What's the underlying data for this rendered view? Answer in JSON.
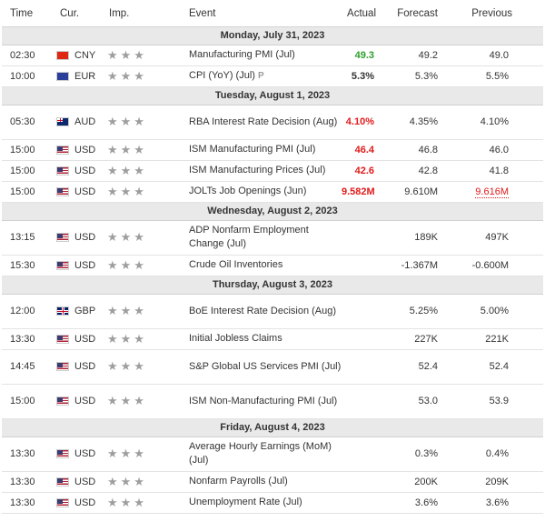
{
  "header": {
    "time": "Time",
    "currency": "Cur.",
    "importance": "Imp.",
    "event": "Event",
    "actual": "Actual",
    "forecast": "Forecast",
    "previous": "Previous"
  },
  "days": [
    {
      "date": "Monday, July 31, 2023",
      "rows": [
        {
          "time": "02:30",
          "flag": "cny",
          "cur": "CNY",
          "event": "Manufacturing PMI (Jul)",
          "actual": "49.3",
          "actual_color": "up",
          "forecast": "49.2",
          "previous": "49.0"
        },
        {
          "time": "10:00",
          "flag": "eur",
          "cur": "EUR",
          "event": "CPI (YoY) (Jul)",
          "prelim": "P",
          "actual": "5.3%",
          "forecast": "5.3%",
          "previous": "5.5%"
        }
      ]
    },
    {
      "date": "Tuesday, August 1, 2023",
      "rows": [
        {
          "time": "05:30",
          "flag": "aud",
          "cur": "AUD",
          "event": "RBA Interest Rate Decision (Aug)",
          "actual": "4.10%",
          "actual_color": "down",
          "forecast": "4.35%",
          "previous": "4.10%",
          "tall": true
        },
        {
          "time": "15:00",
          "flag": "usd",
          "cur": "USD",
          "event": "ISM Manufacturing PMI (Jul)",
          "actual": "46.4",
          "actual_color": "down",
          "forecast": "46.8",
          "previous": "46.0"
        },
        {
          "time": "15:00",
          "flag": "usd",
          "cur": "USD",
          "event": "ISM Manufacturing Prices (Jul)",
          "actual": "42.6",
          "actual_color": "down",
          "forecast": "42.8",
          "previous": "41.8"
        },
        {
          "time": "15:00",
          "flag": "usd",
          "cur": "USD",
          "event": "JOLTs Job Openings (Jun)",
          "actual": "9.582M",
          "actual_color": "down",
          "forecast": "9.610M",
          "previous": "9.616M",
          "previous_color": "rev-down"
        }
      ]
    },
    {
      "date": "Wednesday, August 2, 2023",
      "rows": [
        {
          "time": "13:15",
          "flag": "usd",
          "cur": "USD",
          "event": "ADP Nonfarm Employment Change (Jul)",
          "actual": "",
          "forecast": "189K",
          "previous": "497K",
          "tall": true
        },
        {
          "time": "15:30",
          "flag": "usd",
          "cur": "USD",
          "event": "Crude Oil Inventories",
          "actual": "",
          "forecast": "-1.367M",
          "previous": "-0.600M"
        }
      ]
    },
    {
      "date": "Thursday, August 3, 2023",
      "rows": [
        {
          "time": "12:00",
          "flag": "gbp",
          "cur": "GBP",
          "event": "BoE Interest Rate Decision (Aug)",
          "actual": "",
          "forecast": "5.25%",
          "previous": "5.00%",
          "tall": true
        },
        {
          "time": "13:30",
          "flag": "usd",
          "cur": "USD",
          "event": "Initial Jobless Claims",
          "actual": "",
          "forecast": "227K",
          "previous": "221K"
        },
        {
          "time": "14:45",
          "flag": "usd",
          "cur": "USD",
          "event": "S&P Global US Services PMI (Jul)",
          "actual": "",
          "forecast": "52.4",
          "previous": "52.4",
          "tall": true
        },
        {
          "time": "15:00",
          "flag": "usd",
          "cur": "USD",
          "event": "ISM Non-Manufacturing PMI (Jul)",
          "actual": "",
          "forecast": "53.0",
          "previous": "53.9",
          "tall": true
        }
      ]
    },
    {
      "date": "Friday, August 4, 2023",
      "rows": [
        {
          "time": "13:30",
          "flag": "usd",
          "cur": "USD",
          "event": "Average Hourly Earnings (MoM) (Jul)",
          "actual": "",
          "forecast": "0.3%",
          "previous": "0.4%",
          "tall": true
        },
        {
          "time": "13:30",
          "flag": "usd",
          "cur": "USD",
          "event": "Nonfarm Payrolls (Jul)",
          "actual": "",
          "forecast": "200K",
          "previous": "209K"
        },
        {
          "time": "13:30",
          "flag": "usd",
          "cur": "USD",
          "event": "Unemployment Rate (Jul)",
          "actual": "",
          "forecast": "3.6%",
          "previous": "3.6%"
        }
      ]
    }
  ],
  "importance_stars": "★★★",
  "colors": {
    "up": "#2ca02c",
    "down": "#e21b1b",
    "day_header_bg": "#e9e9e9"
  }
}
